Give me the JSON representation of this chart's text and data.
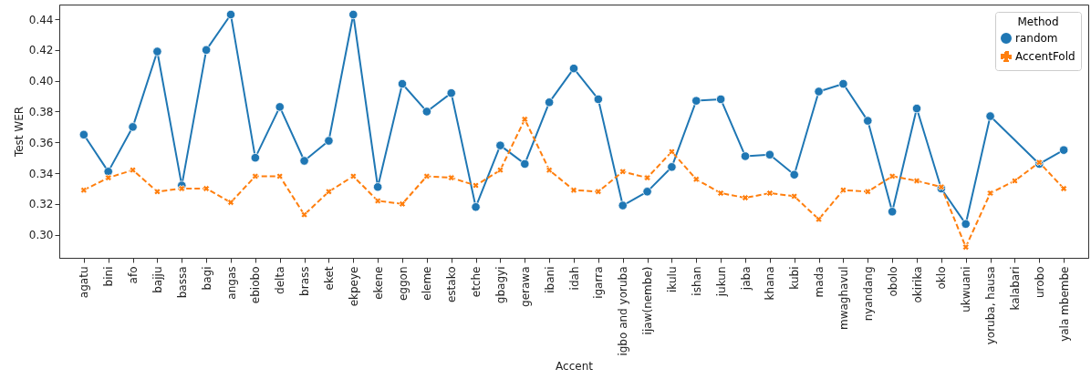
{
  "chart_data": {
    "type": "line",
    "xlabel": "Accent",
    "ylabel": "Test WER",
    "legend_title": "Method",
    "legend": "top right",
    "grid": false,
    "categories": [
      "agatu",
      "bini",
      "afo",
      "bajju",
      "bassa",
      "bagi",
      "angas",
      "ebiobo",
      "delta",
      "brass",
      "eket",
      "ekpeye",
      "ekene",
      "eggon",
      "eleme",
      "estako",
      "etche",
      "gbagyi",
      "gerawa",
      "ibani",
      "idah",
      "igarra",
      "igbo and yoruba",
      "ijaw(nembe)",
      "ikulu",
      "ishan",
      "jukun",
      "jaba",
      "khana",
      "kubi",
      "mada",
      "mwaghavul",
      "nyandang",
      "obolo",
      "okirika",
      "oklo",
      "ukwuani",
      "yoruba, hausa",
      "kalabari",
      "urobo",
      "yala mbembe"
    ],
    "ylim": [
      0.285,
      0.4495
    ],
    "yticks": [
      {
        "value": 0.3,
        "label": "0.30"
      },
      {
        "value": 0.32,
        "label": "0.32"
      },
      {
        "value": 0.34,
        "label": "0.34"
      },
      {
        "value": 0.36,
        "label": "0.36"
      },
      {
        "value": 0.38,
        "label": "0.38"
      },
      {
        "value": 0.4,
        "label": "0.40"
      },
      {
        "value": 0.42,
        "label": "0.42"
      },
      {
        "value": 0.44,
        "label": "0.44"
      }
    ],
    "series": [
      {
        "name": "random",
        "color": "#1f77b4",
        "marker": "circle",
        "line_style": "solid",
        "values": [
          0.365,
          0.341,
          0.37,
          0.419,
          0.332,
          0.42,
          0.443,
          0.35,
          0.383,
          0.348,
          0.361,
          0.443,
          0.331,
          0.398,
          0.38,
          0.392,
          0.318,
          0.358,
          0.346,
          0.386,
          0.408,
          0.388,
          0.319,
          0.328,
          0.344,
          0.387,
          0.388,
          0.351,
          0.352,
          0.339,
          0.393,
          0.398,
          0.374,
          0.315,
          0.382,
          0.33,
          0.307,
          0.377,
          null,
          0.346,
          0.355
        ]
      },
      {
        "name": "AccentFold",
        "color": "#ff7f0e",
        "marker": "cross",
        "line_style": "dashed",
        "values": [
          0.329,
          0.337,
          0.342,
          0.328,
          0.33,
          0.33,
          0.321,
          0.338,
          0.338,
          0.313,
          0.328,
          0.338,
          0.322,
          0.32,
          0.338,
          0.337,
          0.332,
          0.342,
          0.375,
          0.342,
          0.329,
          0.328,
          0.341,
          0.337,
          0.354,
          0.336,
          0.327,
          0.324,
          0.327,
          0.325,
          0.31,
          0.329,
          0.328,
          0.338,
          0.335,
          0.331,
          0.292,
          0.327,
          0.335,
          0.347,
          0.33
        ]
      }
    ]
  }
}
